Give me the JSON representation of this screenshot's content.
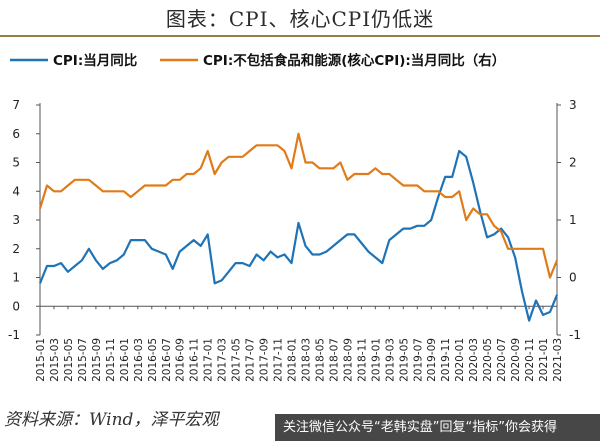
{
  "title": "图表：CPI、核心CPI仍低迷",
  "source": "资料来源：Wind，泽平宏观",
  "watermark": "关注微信公众号“老韩实盘”回复“指标”你会获得",
  "chart_data": {
    "type": "line",
    "legend_placement": "top",
    "grid": false,
    "x": [
      "2015-01",
      "2015-02",
      "2015-03",
      "2015-04",
      "2015-05",
      "2015-06",
      "2015-07",
      "2015-08",
      "2015-09",
      "2015-10",
      "2015-11",
      "2015-12",
      "2016-01",
      "2016-02",
      "2016-03",
      "2016-04",
      "2016-05",
      "2016-06",
      "2016-07",
      "2016-08",
      "2016-09",
      "2016-10",
      "2016-11",
      "2016-12",
      "2017-01",
      "2017-02",
      "2017-03",
      "2017-04",
      "2017-05",
      "2017-06",
      "2017-07",
      "2017-08",
      "2017-09",
      "2017-10",
      "2017-11",
      "2017-12",
      "2018-01",
      "2018-02",
      "2018-03",
      "2018-04",
      "2018-05",
      "2018-06",
      "2018-07",
      "2018-08",
      "2018-09",
      "2018-10",
      "2018-11",
      "2018-12",
      "2019-01",
      "2019-02",
      "2019-03",
      "2019-04",
      "2019-05",
      "2019-06",
      "2019-07",
      "2019-08",
      "2019-09",
      "2019-10",
      "2019-11",
      "2019-12",
      "2020-01",
      "2020-02",
      "2020-03",
      "2020-04",
      "2020-05",
      "2020-06",
      "2020-07",
      "2020-08",
      "2020-09",
      "2020-10",
      "2020-11",
      "2020-12",
      "2021-01",
      "2021-02",
      "2021-03"
    ],
    "x_tick_labels": [
      "2015-01",
      "2015-03",
      "2015-05",
      "2015-07",
      "2015-09",
      "2015-11",
      "2016-01",
      "2016-03",
      "2016-05",
      "2016-07",
      "2016-09",
      "2016-11",
      "2017-01",
      "2017-03",
      "2017-05",
      "2017-07",
      "2017-09",
      "2017-11",
      "2018-01",
      "2018-03",
      "2018-05",
      "2018-07",
      "2018-09",
      "2018-11",
      "2019-01",
      "2019-03",
      "2019-05",
      "2019-07",
      "2019-09",
      "2019-11",
      "2020-01",
      "2020-03",
      "2020-05",
      "2020-07",
      "2020-09",
      "2020-11",
      "2021-01",
      "2021-03"
    ],
    "y_left": {
      "min": -1,
      "max": 7,
      "ticks": [
        -1,
        0,
        1,
        2,
        3,
        4,
        5,
        6,
        7
      ]
    },
    "y_right": {
      "min": -1,
      "max": 3,
      "ticks": [
        -1,
        0,
        1,
        2,
        3
      ]
    },
    "series": [
      {
        "name": "CPI:当月同比",
        "axis": "left",
        "color": "#1f73b7",
        "values": [
          0.8,
          1.4,
          1.4,
          1.5,
          1.2,
          1.4,
          1.6,
          2.0,
          1.6,
          1.3,
          1.5,
          1.6,
          1.8,
          2.3,
          2.3,
          2.3,
          2.0,
          1.9,
          1.8,
          1.3,
          1.9,
          2.1,
          2.3,
          2.1,
          2.5,
          0.8,
          0.9,
          1.2,
          1.5,
          1.5,
          1.4,
          1.8,
          1.6,
          1.9,
          1.7,
          1.8,
          1.5,
          2.9,
          2.1,
          1.8,
          1.8,
          1.9,
          2.1,
          2.3,
          2.5,
          2.5,
          2.2,
          1.9,
          1.7,
          1.5,
          2.3,
          2.5,
          2.7,
          2.7,
          2.8,
          2.8,
          3.0,
          3.8,
          4.5,
          4.5,
          5.4,
          5.2,
          4.3,
          3.3,
          2.4,
          2.5,
          2.7,
          2.4,
          1.7,
          0.5,
          -0.5,
          0.2,
          -0.3,
          -0.2,
          0.4
        ]
      },
      {
        "name": "CPI:不包括食品和能源(核心CPI):当月同比（右）",
        "axis": "right",
        "color": "#e07b1a",
        "values": [
          1.2,
          1.6,
          1.5,
          1.5,
          1.6,
          1.7,
          1.7,
          1.7,
          1.6,
          1.5,
          1.5,
          1.5,
          1.5,
          1.4,
          1.5,
          1.6,
          1.6,
          1.6,
          1.6,
          1.7,
          1.7,
          1.8,
          1.8,
          1.9,
          2.2,
          1.8,
          2.0,
          2.1,
          2.1,
          2.1,
          2.2,
          2.3,
          2.3,
          2.3,
          2.3,
          2.2,
          1.9,
          2.5,
          2.0,
          2.0,
          1.9,
          1.9,
          1.9,
          2.0,
          1.7,
          1.8,
          1.8,
          1.8,
          1.9,
          1.8,
          1.8,
          1.7,
          1.6,
          1.6,
          1.6,
          1.5,
          1.5,
          1.5,
          1.4,
          1.4,
          1.5,
          1.0,
          1.2,
          1.1,
          1.1,
          0.9,
          0.8,
          0.5,
          0.5,
          0.5,
          0.5,
          0.5,
          0.5,
          0.0,
          0.3
        ]
      }
    ]
  }
}
